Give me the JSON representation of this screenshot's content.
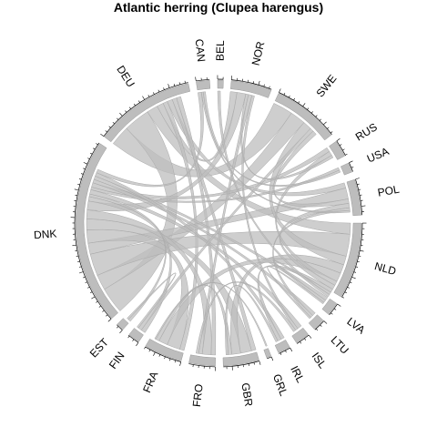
{
  "title": "Atlantic herring (Clupea harengus)",
  "chart_data": {
    "type": "chord",
    "title": "Atlantic herring (Clupea harengus)",
    "colors": {
      "sector": "#bdbdbd",
      "ribbon": "#bdbdbd",
      "axis": "#000000"
    },
    "sectors": [
      {
        "name": "CAN",
        "weight": 2.8
      },
      {
        "name": "BEL",
        "weight": 1.2
      },
      {
        "name": "NOR",
        "weight": 8.5
      },
      {
        "name": "SWE",
        "weight": 14.0
      },
      {
        "name": "RUS",
        "weight": 3.5
      },
      {
        "name": "USA",
        "weight": 2.0
      },
      {
        "name": "POL",
        "weight": 7.5
      },
      {
        "name": "NLD",
        "weight": 16.0
      },
      {
        "name": "LVA",
        "weight": 2.8
      },
      {
        "name": "LTU",
        "weight": 2.6
      },
      {
        "name": "ISL",
        "weight": 3.0
      },
      {
        "name": "IRL",
        "weight": 2.6
      },
      {
        "name": "GRL",
        "weight": 1.0
      },
      {
        "name": "GBR",
        "weight": 7.5
      },
      {
        "name": "FRO",
        "weight": 5.5
      },
      {
        "name": "FRA",
        "weight": 8.0
      },
      {
        "name": "FIN",
        "weight": 2.5
      },
      {
        "name": "EST",
        "weight": 1.6
      },
      {
        "name": "DNK",
        "weight": 39.0
      },
      {
        "name": "DEU",
        "weight": 21.0
      }
    ],
    "links": [
      {
        "from": "DEU",
        "to": "SWE",
        "value": 4.5
      },
      {
        "from": "DEU",
        "to": "DNK",
        "value": 6.0
      },
      {
        "from": "DEU",
        "to": "NLD",
        "value": 2.5
      },
      {
        "from": "DEU",
        "to": "NOR",
        "value": 1.5
      },
      {
        "from": "DEU",
        "to": "FRA",
        "value": 1.0
      },
      {
        "from": "DEU",
        "to": "POL",
        "value": 1.2
      },
      {
        "from": "DEU",
        "to": "GBR",
        "value": 1.0
      },
      {
        "from": "DEU",
        "to": "FRO",
        "value": 1.0
      },
      {
        "from": "DNK",
        "to": "SWE",
        "value": 3.5
      },
      {
        "from": "DNK",
        "to": "NLD",
        "value": 5.0
      },
      {
        "from": "DNK",
        "to": "POL",
        "value": 2.5
      },
      {
        "from": "DNK",
        "to": "FRA",
        "value": 3.0
      },
      {
        "from": "DNK",
        "to": "GBR",
        "value": 2.5
      },
      {
        "from": "DNK",
        "to": "FRO",
        "value": 2.0
      },
      {
        "from": "DNK",
        "to": "NOR",
        "value": 2.0
      },
      {
        "from": "DNK",
        "to": "FIN",
        "value": 1.0
      },
      {
        "from": "DNK",
        "to": "EST",
        "value": 0.6
      },
      {
        "from": "DNK",
        "to": "ISL",
        "value": 1.0
      },
      {
        "from": "DNK",
        "to": "USA",
        "value": 0.6
      },
      {
        "from": "DNK",
        "to": "RUS",
        "value": 1.0
      },
      {
        "from": "DNK",
        "to": "LTU",
        "value": 0.8
      },
      {
        "from": "DNK",
        "to": "LVA",
        "value": 0.8
      },
      {
        "from": "DNK",
        "to": "IRL",
        "value": 0.8
      },
      {
        "from": "DNK",
        "to": "CAN",
        "value": 0.8
      },
      {
        "from": "SWE",
        "to": "NLD",
        "value": 2.0
      },
      {
        "from": "SWE",
        "to": "FIN",
        "value": 0.8
      },
      {
        "from": "SWE",
        "to": "POL",
        "value": 1.0
      },
      {
        "from": "NLD",
        "to": "GBR",
        "value": 2.0
      },
      {
        "from": "NLD",
        "to": "FRA",
        "value": 2.0
      },
      {
        "from": "NLD",
        "to": "RUS",
        "value": 1.0
      },
      {
        "from": "NLD",
        "to": "POL",
        "value": 1.0
      },
      {
        "from": "NLD",
        "to": "IRL",
        "value": 0.8
      },
      {
        "from": "NLD",
        "to": "LVA",
        "value": 0.6
      },
      {
        "from": "NOR",
        "to": "RUS",
        "value": 0.6
      },
      {
        "from": "NOR",
        "to": "FRO",
        "value": 0.8
      },
      {
        "from": "NOR",
        "to": "ISL",
        "value": 0.6
      },
      {
        "from": "GBR",
        "to": "FRA",
        "value": 0.8
      },
      {
        "from": "GBR",
        "to": "IRL",
        "value": 0.5
      },
      {
        "from": "FRO",
        "to": "ISL",
        "value": 0.6
      },
      {
        "from": "POL",
        "to": "LTU",
        "value": 0.6
      },
      {
        "from": "POL",
        "to": "CAN",
        "value": 0.4
      },
      {
        "from": "FRA",
        "to": "GRL",
        "value": 0.3
      },
      {
        "from": "BEL",
        "to": "NLD",
        "value": 0.6
      },
      {
        "from": "USA",
        "to": "CAN",
        "value": 0.5
      },
      {
        "from": "EST",
        "to": "FIN",
        "value": 0.4
      },
      {
        "from": "LVA",
        "to": "LTU",
        "value": 0.4
      }
    ]
  }
}
